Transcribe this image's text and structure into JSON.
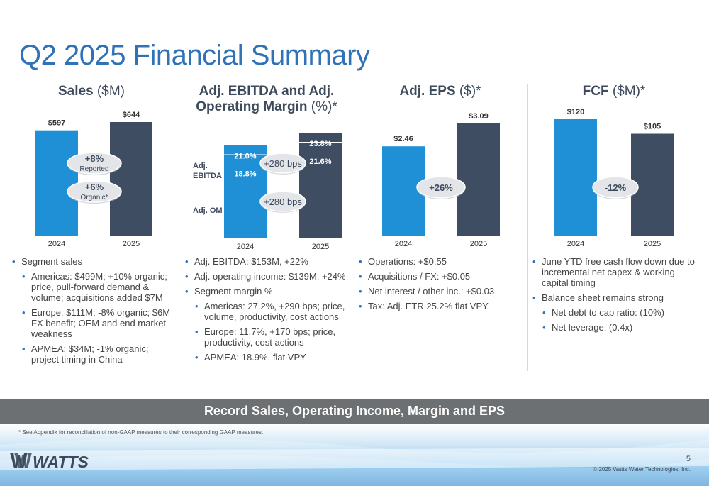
{
  "title": "Q2 2025 Financial Summary",
  "colors": {
    "light_bar": "#1f8fd6",
    "dark_bar": "#3e4d62",
    "title": "#2f72b8",
    "pill": "#e3e5e8"
  },
  "sales": {
    "heading_bold": "Sales",
    "heading_rest": " ($M)",
    "pill_top_main": "+8%",
    "pill_top_sub": "Reported",
    "pill_bottom_main": "+6%",
    "pill_bottom_sub": "Organic*",
    "bullets": [
      "Segment sales",
      "Americas: $499M; +10% organic; price, pull-forward demand & volume; acquisitions added $7M",
      "Europe: $111M; -8% organic; $6M FX benefit; OEM and end market weakness",
      "APMEA: $34M; -1% organic; project timing in China"
    ]
  },
  "ebitda": {
    "heading_line1_bold": "Adj. EBITDA and Adj.",
    "heading_line2_bold": "Operating Margin",
    "heading_line2_rest": " (%)*",
    "label_ebitda_1": "Adj.",
    "label_ebitda_2": "EBITDA",
    "label_om": "Adj. OM",
    "pill_top": "+280 bps",
    "pill_bottom": "+280 bps",
    "bullets": [
      "Adj. EBITDA: $153M, +22%",
      "Adj. operating income: $139M, +24%",
      "Segment margin %",
      "Americas: 27.2%, +290 bps; price, volume, productivity, cost actions",
      "Europe: 11.7%, +170 bps;  price, productivity, cost actions",
      "APMEA: 18.9%, flat VPY"
    ]
  },
  "eps": {
    "heading_bold": "Adj. EPS",
    "heading_rest": " ($)*",
    "pill": "+26%",
    "bullets": [
      "Operations: +$0.55",
      "Acquisitions / FX: +$0.05",
      "Net interest / other inc.: +$0.03",
      "Tax: Adj. ETR 25.2% flat VPY"
    ]
  },
  "fcf": {
    "heading_bold": "FCF",
    "heading_rest": " ($M)*",
    "pill": "-12%",
    "bullets": [
      "June YTD free cash flow down due to incremental net capex & working capital timing",
      "Balance sheet remains strong",
      "Net debt to cap ratio: (10%)",
      "Net leverage: (0.4x)"
    ]
  },
  "chart_data": [
    {
      "type": "bar",
      "title": "Sales ($M)",
      "categories": [
        "2024",
        "2025"
      ],
      "values": [
        597,
        644
      ],
      "value_labels": [
        "$597",
        "$644"
      ]
    },
    {
      "type": "bar",
      "title": "Adj. EBITDA and Adj. Operating Margin (%)*",
      "categories": [
        "2024",
        "2025"
      ],
      "series": [
        {
          "name": "Adj. EBITDA",
          "values": [
            21.0,
            23.8
          ],
          "labels": [
            "21.0%",
            "23.8%"
          ]
        },
        {
          "name": "Adj. OM",
          "values": [
            18.8,
            21.6
          ],
          "labels": [
            "18.8%",
            "21.6%"
          ]
        }
      ]
    },
    {
      "type": "bar",
      "title": "Adj. EPS ($)*",
      "categories": [
        "2024",
        "2025"
      ],
      "values": [
        2.46,
        3.09
      ],
      "value_labels": [
        "$2.46",
        "$3.09"
      ]
    },
    {
      "type": "bar",
      "title": "FCF ($M)*",
      "categories": [
        "2024",
        "2025"
      ],
      "values": [
        120,
        105
      ],
      "value_labels": [
        "$120",
        "$105"
      ]
    }
  ],
  "banner": "Record Sales, Operating Income, Margin and EPS",
  "footnote": "* See Appendix for reconciliation of non-GAAP measures to their corresponding GAAP measures.",
  "logo_text": "WATTS",
  "page_number": "5",
  "copyright": "© 2025 Watts Water Technologies, Inc."
}
